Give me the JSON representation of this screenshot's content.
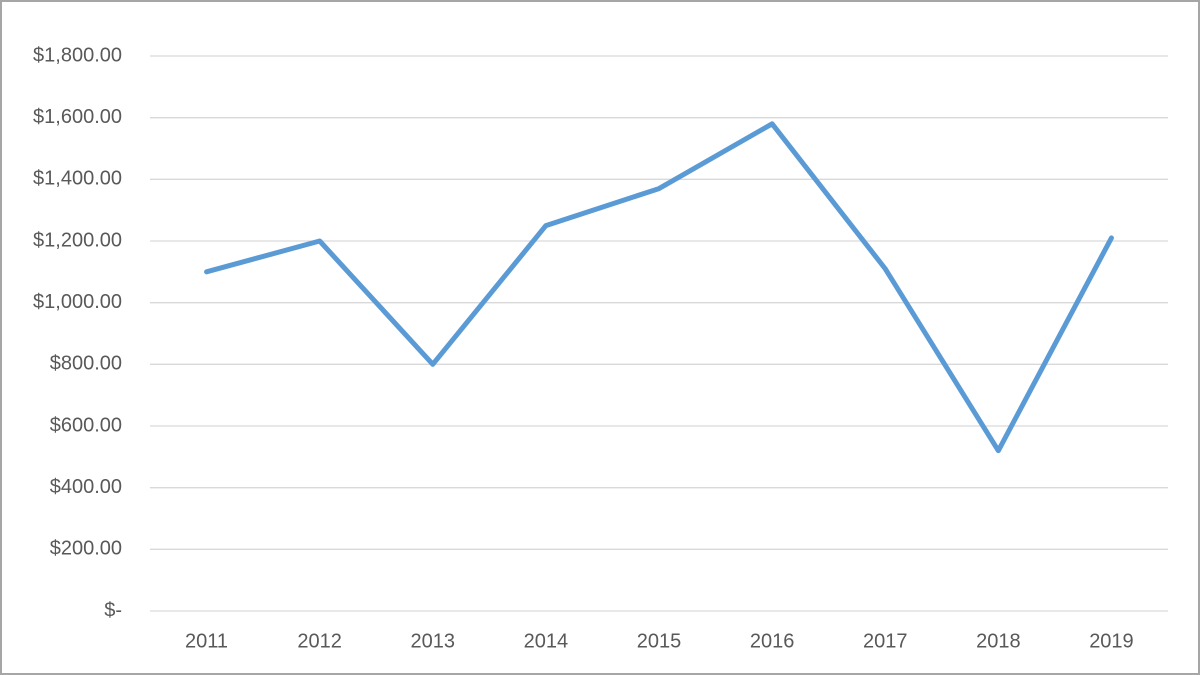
{
  "chart_data": {
    "type": "line",
    "categories": [
      "2011",
      "2012",
      "2013",
      "2014",
      "2015",
      "2016",
      "2017",
      "2018",
      "2019"
    ],
    "values": [
      1100,
      1200,
      800,
      1250,
      1370,
      1580,
      1110,
      520,
      1210
    ],
    "color": "#5b9bd5",
    "ylim": [
      0,
      1800
    ],
    "yticks": [
      {
        "value": 0,
        "label": "$-"
      },
      {
        "value": 200,
        "label": "$200.00"
      },
      {
        "value": 400,
        "label": "$400.00"
      },
      {
        "value": 600,
        "label": "$600.00"
      },
      {
        "value": 800,
        "label": "$800.00"
      },
      {
        "value": 1000,
        "label": "$1,000.00"
      },
      {
        "value": 1200,
        "label": "$1,200.00"
      },
      {
        "value": 1400,
        "label": "$1,400.00"
      },
      {
        "value": 1600,
        "label": "$1,600.00"
      },
      {
        "value": 1800,
        "label": "$1,800.00"
      }
    ],
    "grid": true
  }
}
